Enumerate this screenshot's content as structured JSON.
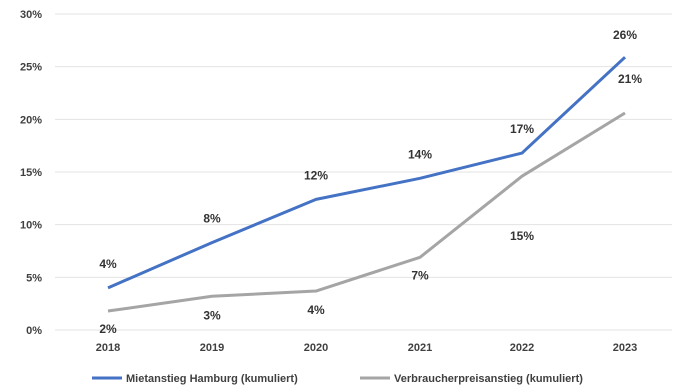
{
  "chart_data": {
    "type": "line",
    "categories": [
      "2018",
      "2019",
      "2020",
      "2021",
      "2022",
      "2023"
    ],
    "ylim": [
      0,
      30
    ],
    "yticks": [
      "0%",
      "5%",
      "10%",
      "15%",
      "20%",
      "25%",
      "30%"
    ],
    "grid": true,
    "legend_position": "bottom",
    "series": [
      {
        "name": "Mietanstieg Hamburg (kumuliert)",
        "color": "#4472C4",
        "values": [
          4.0,
          8.3,
          12.4,
          14.4,
          16.8,
          25.9
        ],
        "labels": [
          "4%",
          "8%",
          "12%",
          "14%",
          "17%",
          "26%"
        ]
      },
      {
        "name": "Verbraucherpreisanstieg (kumuliert)",
        "color": "#A5A5A5",
        "values": [
          1.8,
          3.2,
          3.7,
          6.9,
          14.6,
          20.6
        ],
        "labels": [
          "2%",
          "3%",
          "4%",
          "7%",
          "15%",
          "21%"
        ]
      }
    ]
  }
}
